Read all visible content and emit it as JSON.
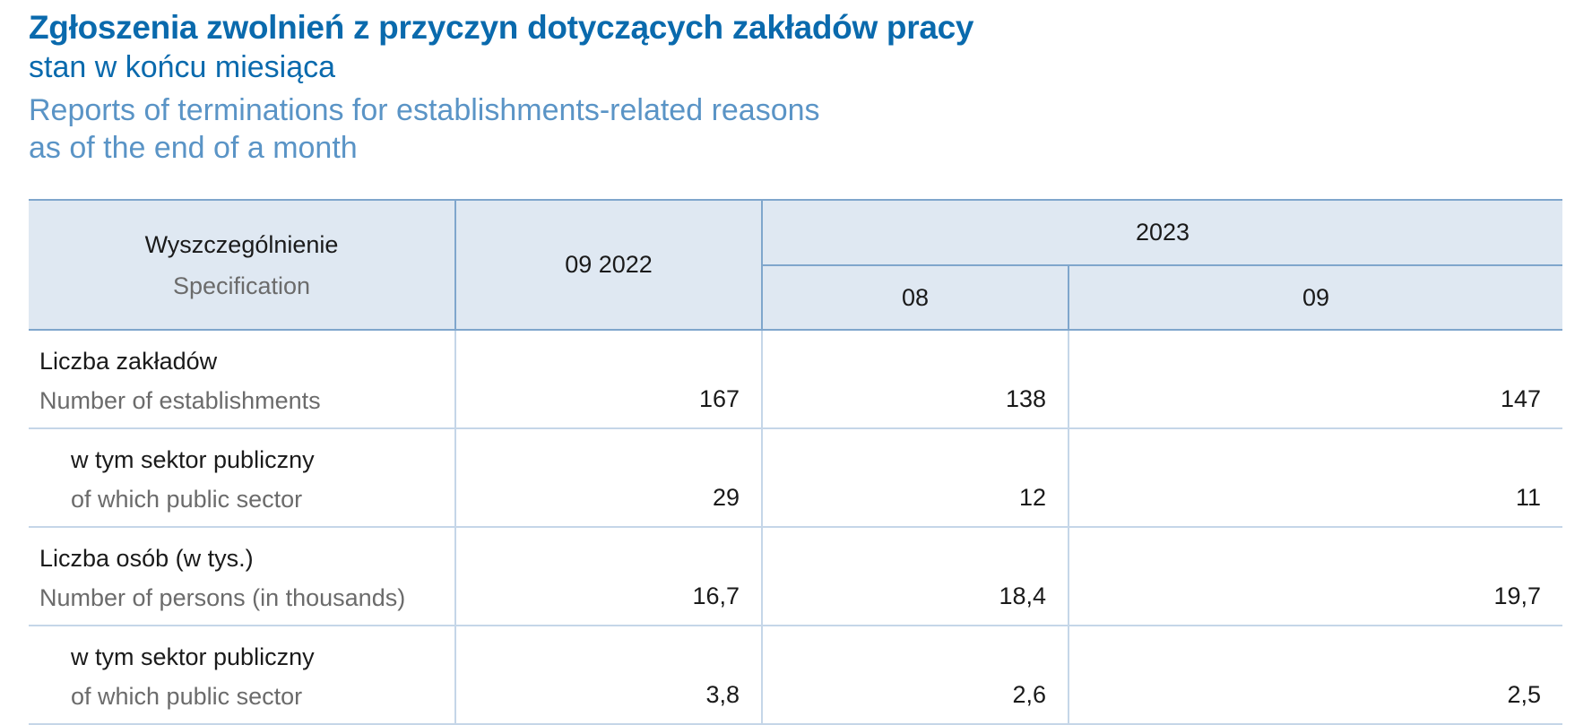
{
  "title": {
    "pl": "Zgłoszenia zwolnień z przyczyn dotyczących zakładów pracy",
    "pl_sub": "stan w końcu miesiąca",
    "en": "Reports of terminations for establishments-related reasons",
    "en_sub": "as of the end of a month"
  },
  "header": {
    "spec_pl": "Wyszczególnienie",
    "spec_en": "Specification",
    "col_prev": "09 2022",
    "year_group": "2023",
    "months": [
      "08",
      "09"
    ]
  },
  "rows": [
    {
      "label_pl": "Liczba zakładów",
      "label_en": "Number of establishments",
      "indent": false,
      "values": [
        "167",
        "138",
        "147"
      ]
    },
    {
      "label_pl": "w tym sektor publiczny",
      "label_en": "of which public sector",
      "indent": true,
      "values": [
        "29",
        "12",
        "11"
      ]
    },
    {
      "label_pl": "Liczba osób (w tys.)",
      "label_en": "Number of persons (in thousands)",
      "indent": false,
      "values": [
        "16,7",
        "18,4",
        "19,7"
      ]
    },
    {
      "label_pl": "w tym sektor publiczny",
      "label_en": "of which public sector",
      "indent": true,
      "values": [
        "3,8",
        "2,6",
        "2,5"
      ]
    }
  ],
  "colors": {
    "title_blue": "#0a6aad",
    "title_light_blue": "#5a94c6",
    "header_bg": "#dfe8f2",
    "border": "#7fa6cc"
  }
}
